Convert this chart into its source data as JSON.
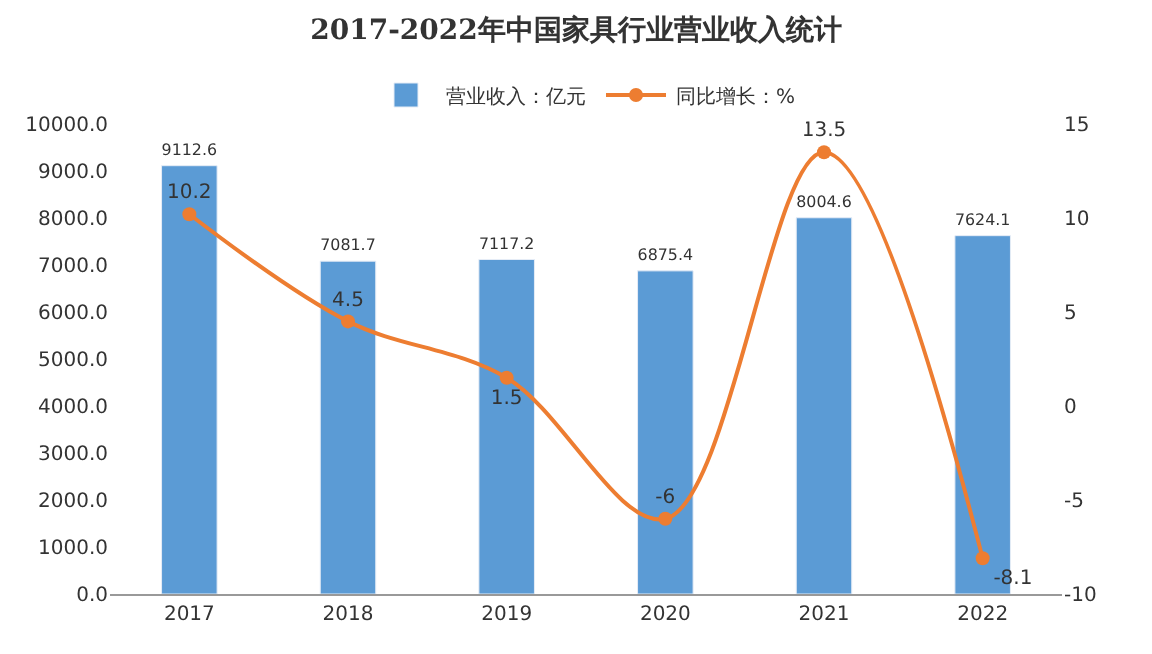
{
  "chart_data": {
    "type": "bar",
    "title": "2017-2022年中国家具行业营业收入统计",
    "categories": [
      "2017",
      "2018",
      "2019",
      "2020",
      "2021",
      "2022"
    ],
    "series": [
      {
        "name": "营业收入：亿元",
        "color": "#5b9bd5",
        "values": [
          9112.6,
          7081.7,
          7117.2,
          6875.4,
          8004.6,
          7624.1
        ]
      },
      {
        "name": "同比增长：%",
        "type": "line",
        "axis": "y2",
        "color": "#ed7d31",
        "values": [
          10.2,
          4.5,
          1.5,
          -6,
          13.5,
          -8.1
        ],
        "marker": "circle"
      }
    ],
    "ylim": [
      0,
      10000
    ],
    "yticks": [
      {
        "value": 0,
        "label": "0.0"
      },
      {
        "value": 1000,
        "label": "1000.0"
      },
      {
        "value": 2000,
        "label": "2000.0"
      },
      {
        "value": 3000,
        "label": "3000.0"
      },
      {
        "value": 4000,
        "label": "4000.0"
      },
      {
        "value": 5000,
        "label": "5000.0"
      },
      {
        "value": 6000,
        "label": "6000.0"
      },
      {
        "value": 7000,
        "label": "7000.0"
      },
      {
        "value": 8000,
        "label": "8000.0"
      },
      {
        "value": 9000,
        "label": "9000.0"
      },
      {
        "value": 10000,
        "label": "10000.0"
      }
    ],
    "y2lim": [
      -10,
      15
    ],
    "y2ticks": [
      -10,
      -5,
      0,
      5,
      10,
      15
    ],
    "data_labels": true,
    "legend": "top"
  }
}
